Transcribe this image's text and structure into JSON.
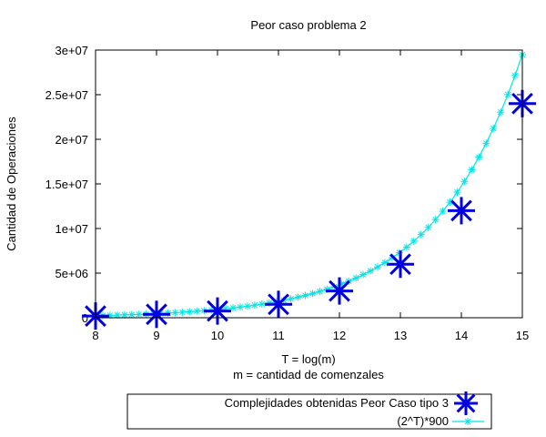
{
  "chart_data": {
    "type": "scatter",
    "title": "Peor caso problema 2",
    "xlabel": "T = log(m)",
    "xlabel2": "m = cantidad de comenzales",
    "ylabel": "Cantidad de Operaciones",
    "xlim": [
      8,
      15
    ],
    "ylim": [
      0,
      30000000
    ],
    "xticks": [
      8,
      9,
      10,
      11,
      12,
      13,
      14,
      15
    ],
    "yticks": [
      0,
      5000000,
      10000000,
      15000000,
      20000000,
      25000000,
      30000000
    ],
    "ytick_labels": [
      "0",
      "5e+06",
      "1e+07",
      "1.5e+07",
      "2e+07",
      "2.5e+07",
      "3e+07"
    ],
    "grid": false,
    "legend_position": "bottom",
    "series": [
      {
        "name": "Complejidades obtenidas Peor Caso tipo 3",
        "style": "points",
        "color": "#0000e0",
        "x": [
          8,
          9,
          10,
          11,
          12,
          13,
          14,
          15
        ],
        "y": [
          190000,
          380000,
          750000,
          1500000,
          3000000,
          6000000,
          12000000,
          24000000
        ]
      },
      {
        "name": "(2^T)*900",
        "style": "linespoints",
        "color": "#00e5e5",
        "function": "2^x*900",
        "x_start": 8,
        "x_end": 15,
        "samples": 60
      }
    ]
  }
}
